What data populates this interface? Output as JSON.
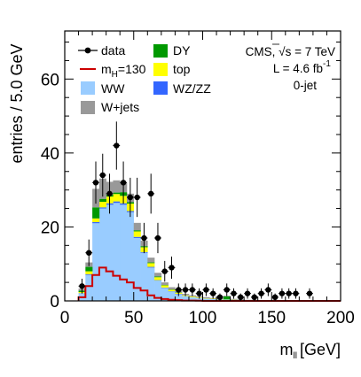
{
  "chart_data": {
    "type": "bar",
    "subtype": "stacked-step-histogram",
    "xlabel": "m",
    "xlabel_sub": "ll",
    "xlabel_unit": "[GeV]",
    "ylabel": "entries / 5.0 GeV",
    "xlim": [
      0,
      200
    ],
    "ylim": [
      0,
      73
    ],
    "xticks": [
      0,
      50,
      100,
      150,
      200
    ],
    "yticks": [
      0,
      20,
      40,
      60
    ],
    "bin_width": 5,
    "bin_edges": [
      10,
      15,
      20,
      25,
      30,
      35,
      40,
      45,
      50,
      55,
      60,
      65,
      70,
      75,
      80,
      85,
      90,
      95,
      100,
      105,
      110,
      115,
      120,
      125,
      130,
      135,
      140,
      145,
      150,
      155,
      160,
      165,
      170,
      175,
      180,
      185,
      190,
      195,
      200
    ],
    "stack_order": [
      "WW",
      "WZ/ZZ",
      "top",
      "DY",
      "W+jets"
    ],
    "series": [
      {
        "name": "WW",
        "color": "#99ccff",
        "values": [
          2,
          7,
          21,
          25,
          26,
          26.5,
          26,
          24,
          17,
          13,
          9,
          5.5,
          3.5,
          2.5,
          1.8,
          1.3,
          1,
          0.8,
          0.6,
          0.5,
          0.4,
          0.35,
          0.3,
          0.25,
          0.2,
          0.18,
          0.15,
          0.12,
          0.1,
          0.08,
          0.06,
          0.05,
          0.04,
          0.03,
          0.02,
          0.02,
          0.01,
          0.01
        ]
      },
      {
        "name": "WZ/ZZ",
        "color": "#3366ff",
        "values": [
          0.1,
          0.2,
          0.3,
          0.3,
          0.4,
          0.4,
          0.4,
          0.3,
          0.3,
          0.2,
          0.2,
          0.1,
          0.1,
          0.1,
          0.1,
          0,
          0,
          0,
          0,
          0,
          0,
          0,
          0,
          0,
          0,
          0,
          0,
          0,
          0,
          0,
          0,
          0,
          0,
          0,
          0,
          0,
          0,
          0
        ]
      },
      {
        "name": "top",
        "color": "#ffff00",
        "values": [
          0.3,
          0.8,
          1,
          1.5,
          1.8,
          2,
          2,
          2,
          1.5,
          1.3,
          1,
          0.8,
          0.6,
          0.4,
          0.3,
          0.2,
          0.2,
          0.15,
          0.1,
          0.1,
          0.1,
          0.05,
          0.05,
          0,
          0,
          0,
          0,
          0,
          0,
          0,
          0,
          0,
          0,
          0,
          0,
          0,
          0,
          0
        ]
      },
      {
        "name": "DY",
        "color": "#009900",
        "values": [
          0.4,
          1.2,
          3,
          0.8,
          0.5,
          0.4,
          1,
          0.4,
          0.3,
          0.3,
          0.2,
          0.2,
          0.1,
          0.1,
          0.1,
          0,
          0,
          0,
          0,
          0,
          0,
          0.8,
          0,
          0,
          0,
          0,
          0,
          0,
          0,
          0,
          0,
          0,
          0,
          0,
          0,
          0,
          0,
          0
        ]
      },
      {
        "name": "W+jets",
        "color": "#999999",
        "values": [
          0.5,
          1.2,
          5,
          5.5,
          3.5,
          3.3,
          2.6,
          2.3,
          2,
          1.5,
          1.3,
          1,
          0.7,
          0.6,
          0.5,
          0.4,
          0.3,
          0.3,
          0.3,
          0.2,
          0.2,
          0.2,
          0.2,
          0.1,
          0.1,
          0.1,
          0.1,
          0.1,
          0.1,
          0.1,
          0.1,
          0.1,
          0.1,
          0,
          0,
          0,
          0,
          0
        ]
      }
    ],
    "signal": {
      "name": "mH=130",
      "color": "#cc0000",
      "values": [
        1,
        4,
        7,
        9,
        8,
        6.8,
        5.8,
        5,
        3.5,
        2.8,
        1.5,
        0.8,
        0.5,
        0.3,
        0.2,
        0.1,
        0.08,
        0.05,
        0,
        0,
        0,
        0,
        0,
        0,
        0,
        0,
        0,
        0,
        0,
        0,
        0,
        0,
        0,
        0,
        0,
        0,
        0,
        0
      ]
    },
    "data": {
      "name": "data",
      "x": [
        12.5,
        17.5,
        22.5,
        27.5,
        32.5,
        37.5,
        42.5,
        47.5,
        52.5,
        57.5,
        62.5,
        67.5,
        72.5,
        77.5,
        82.5,
        87.5,
        92.5,
        97.5,
        102.5,
        107.5,
        112.5,
        117.5,
        122.5,
        127.5,
        132.5,
        137.5,
        142.5,
        147.5,
        152.5,
        157.5,
        162.5,
        167.5,
        177.5
      ],
      "y": [
        4,
        13,
        32,
        34,
        29,
        42,
        32,
        28,
        28,
        17,
        29,
        17,
        8,
        9,
        3,
        3,
        3,
        2,
        3,
        2,
        1,
        3,
        2,
        1,
        2,
        1,
        2,
        3,
        1,
        2,
        2,
        2,
        2
      ],
      "err": [
        2,
        3.6,
        5.7,
        5.8,
        5.4,
        6.5,
        5.7,
        5.3,
        5.3,
        4.1,
        5.4,
        4.1,
        2.8,
        3,
        1.7,
        1.7,
        1.7,
        1.4,
        1.7,
        1.4,
        1,
        1.7,
        1.4,
        1,
        1.4,
        1,
        1.4,
        1.7,
        1,
        1.4,
        1.4,
        1.4,
        1.4
      ]
    },
    "legend": {
      "position": "top-left",
      "entries": [
        {
          "label": "data",
          "kind": "marker",
          "color": "#000000"
        },
        {
          "label": "m",
          "sub": "H",
          "suffix": "=130",
          "kind": "line",
          "color": "#cc0000"
        },
        {
          "label": "WW",
          "kind": "box",
          "color": "#99ccff"
        },
        {
          "label": "W+jets",
          "kind": "box",
          "color": "#999999"
        },
        {
          "label": "DY",
          "kind": "box",
          "color": "#009900"
        },
        {
          "label": "top",
          "kind": "box",
          "color": "#ffff00"
        },
        {
          "label": "WZ/ZZ",
          "kind": "box",
          "color": "#3366ff"
        }
      ]
    },
    "annotations": {
      "experiment": "CMS, ",
      "sqrt_s": "s = 7 TeV",
      "lumi": "L = 4.6 fb",
      "lumi_sup": "-1",
      "category": "0-jet"
    },
    "grid": false
  }
}
